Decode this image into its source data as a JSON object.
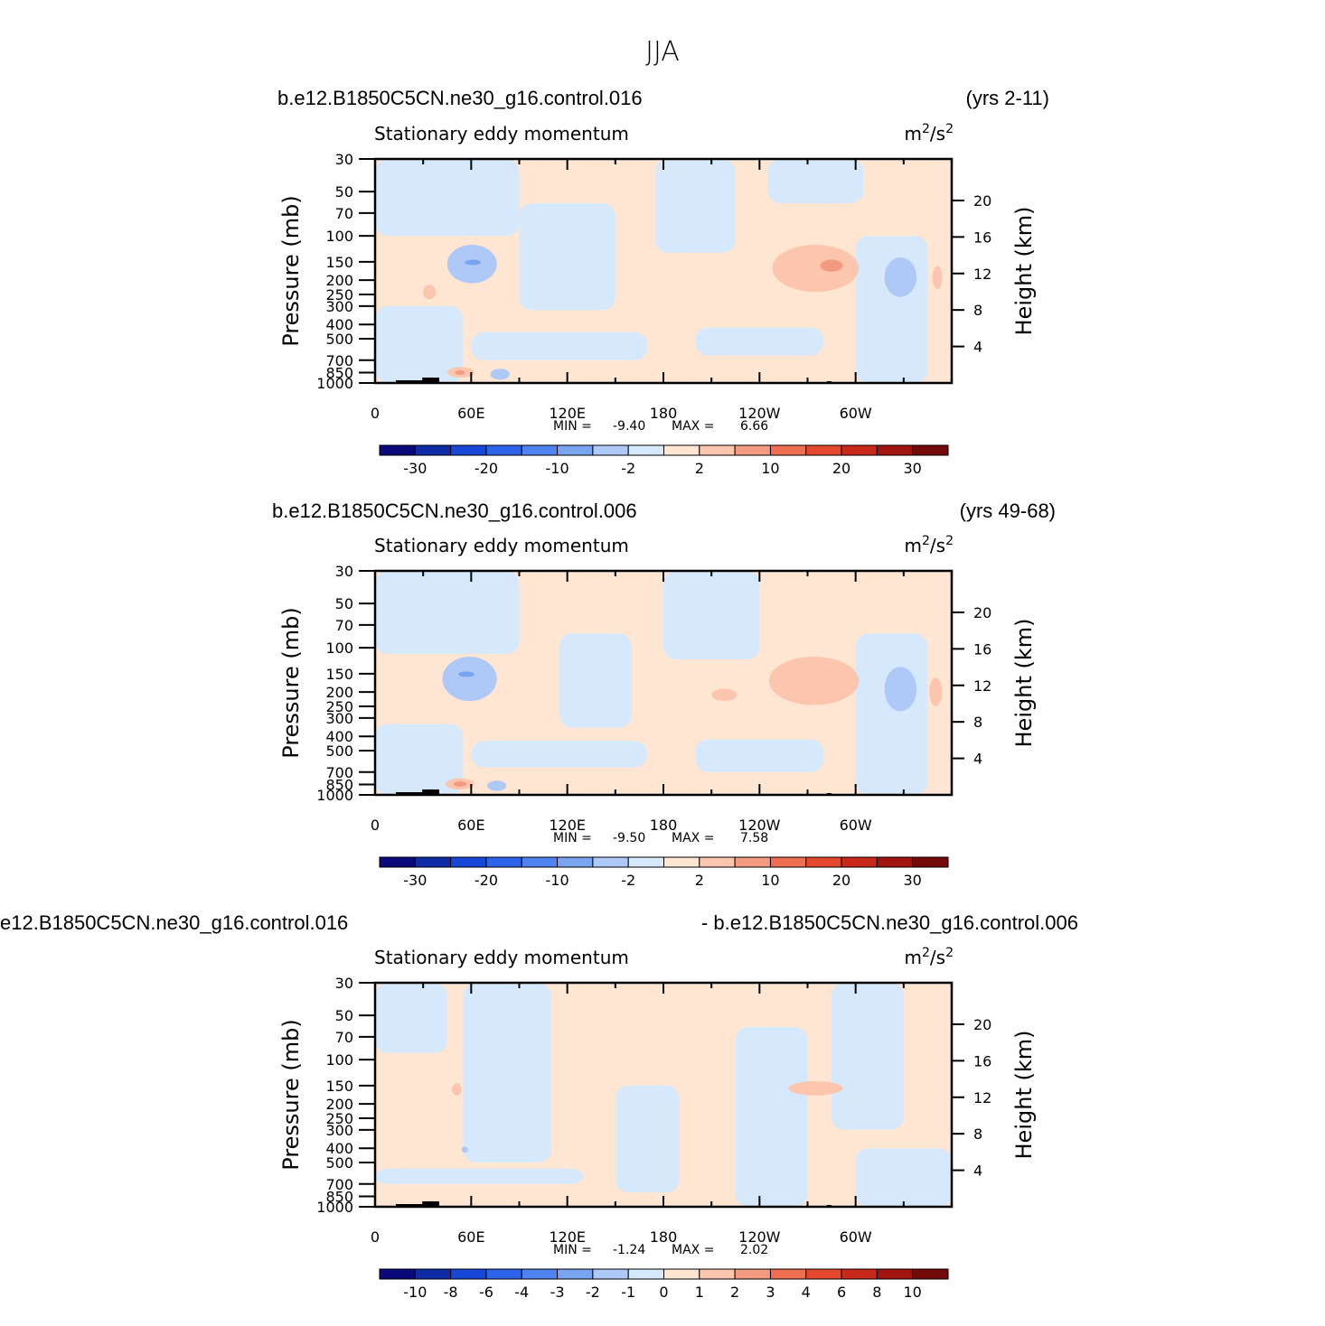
{
  "figure": {
    "title": "JJA"
  },
  "colors": {
    "positive_light": "#ffe6d2",
    "positive_mid": "#fcc5ad",
    "positive_strong": "#f49a80",
    "negative_light": "#d6e8fb",
    "negative_mid": "#aec8f7",
    "negative_strong": "#7aa3f0",
    "topography": "#000000"
  },
  "chart_data": [
    {
      "type": "heatmap",
      "left_title": "b.e12.B1850C5CN.ne30_g16.control.016",
      "right_title": "(yrs 2-11)",
      "subtitle": "Stationary eddy momentum",
      "units_base": "m",
      "units_exp1": "2",
      "units_mid": "/s",
      "units_exp2": "2",
      "ylabel": "Pressure (mb)",
      "ylabel_right": "Height (km)",
      "pressure_ticks": [
        "30",
        "50",
        "70",
        "100",
        "150",
        "200",
        "250",
        "300",
        "400",
        "500",
        "700",
        "850",
        "1000"
      ],
      "height_ticks": [
        "20",
        "16",
        "12",
        "8",
        "4"
      ],
      "x_ticks": [
        "0",
        "60E",
        "120E",
        "180",
        "120W",
        "60W"
      ],
      "xlim": [
        0,
        360
      ],
      "ylim": [
        1000,
        30
      ],
      "min_label": "MIN =",
      "min_value": "-9.40",
      "max_label": "MAX =",
      "max_value": "6.66",
      "colorbar_colors": [
        "#0a0a7a",
        "#0d2aa8",
        "#1747d8",
        "#2d64ea",
        "#4f83f0",
        "#7aa3f0",
        "#aec8f7",
        "#d6e8fb",
        "#ffe6d2",
        "#fcc5ad",
        "#f49a80",
        "#ee6e4f",
        "#e3472e",
        "#c9291a",
        "#a11510",
        "#74090a"
      ],
      "colorbar_labels": [
        "-30",
        "-20",
        "-10",
        "-2",
        "2",
        "10",
        "20",
        "30"
      ]
    },
    {
      "type": "heatmap",
      "left_title": "b.e12.B1850C5CN.ne30_g16.control.006",
      "right_title": "(yrs 49-68)",
      "subtitle": "Stationary eddy momentum",
      "units_base": "m",
      "units_exp1": "2",
      "units_mid": "/s",
      "units_exp2": "2",
      "ylabel": "Pressure (mb)",
      "ylabel_right": "Height (km)",
      "pressure_ticks": [
        "30",
        "50",
        "70",
        "100",
        "150",
        "200",
        "250",
        "300",
        "400",
        "500",
        "700",
        "850",
        "1000"
      ],
      "height_ticks": [
        "20",
        "16",
        "12",
        "8",
        "4"
      ],
      "x_ticks": [
        "0",
        "60E",
        "120E",
        "180",
        "120W",
        "60W"
      ],
      "xlim": [
        0,
        360
      ],
      "ylim": [
        1000,
        30
      ],
      "min_label": "MIN =",
      "min_value": "-9.50",
      "max_label": "MAX =",
      "max_value": "7.58",
      "colorbar_colors": [
        "#0a0a7a",
        "#0d2aa8",
        "#1747d8",
        "#2d64ea",
        "#4f83f0",
        "#7aa3f0",
        "#aec8f7",
        "#d6e8fb",
        "#ffe6d2",
        "#fcc5ad",
        "#f49a80",
        "#ee6e4f",
        "#e3472e",
        "#c9291a",
        "#a11510",
        "#74090a"
      ],
      "colorbar_labels": [
        "-30",
        "-20",
        "-10",
        "-2",
        "2",
        "10",
        "20",
        "30"
      ]
    },
    {
      "type": "heatmap",
      "left_title": "e12.B1850C5CN.ne30_g16.control.016",
      "right_title": "- b.e12.B1850C5CN.ne30_g16.control.006",
      "subtitle": "Stationary eddy momentum",
      "units_base": "m",
      "units_exp1": "2",
      "units_mid": "/s",
      "units_exp2": "2",
      "ylabel": "Pressure (mb)",
      "ylabel_right": "Height (km)",
      "pressure_ticks": [
        "30",
        "50",
        "70",
        "100",
        "150",
        "200",
        "250",
        "300",
        "400",
        "500",
        "700",
        "850",
        "1000"
      ],
      "height_ticks": [
        "20",
        "16",
        "12",
        "8",
        "4"
      ],
      "x_ticks": [
        "0",
        "60E",
        "120E",
        "180",
        "120W",
        "60W"
      ],
      "xlim": [
        0,
        360
      ],
      "ylim": [
        1000,
        30
      ],
      "min_label": "MIN =",
      "min_value": "-1.24",
      "max_label": "MAX =",
      "max_value": "2.02",
      "colorbar_colors": [
        "#0a0a7a",
        "#0d2aa8",
        "#1747d8",
        "#2d64ea",
        "#4f83f0",
        "#7aa3f0",
        "#aec8f7",
        "#d6e8fb",
        "#ffe6d2",
        "#fcc5ad",
        "#f49a80",
        "#ee6e4f",
        "#e3472e",
        "#c9291a",
        "#a11510",
        "#74090a"
      ],
      "colorbar_labels": [
        "-10",
        "-8",
        "-6",
        "-4",
        "-3",
        "-2",
        "-1",
        "0",
        "1",
        "2",
        "3",
        "4",
        "6",
        "8",
        "10"
      ]
    }
  ]
}
